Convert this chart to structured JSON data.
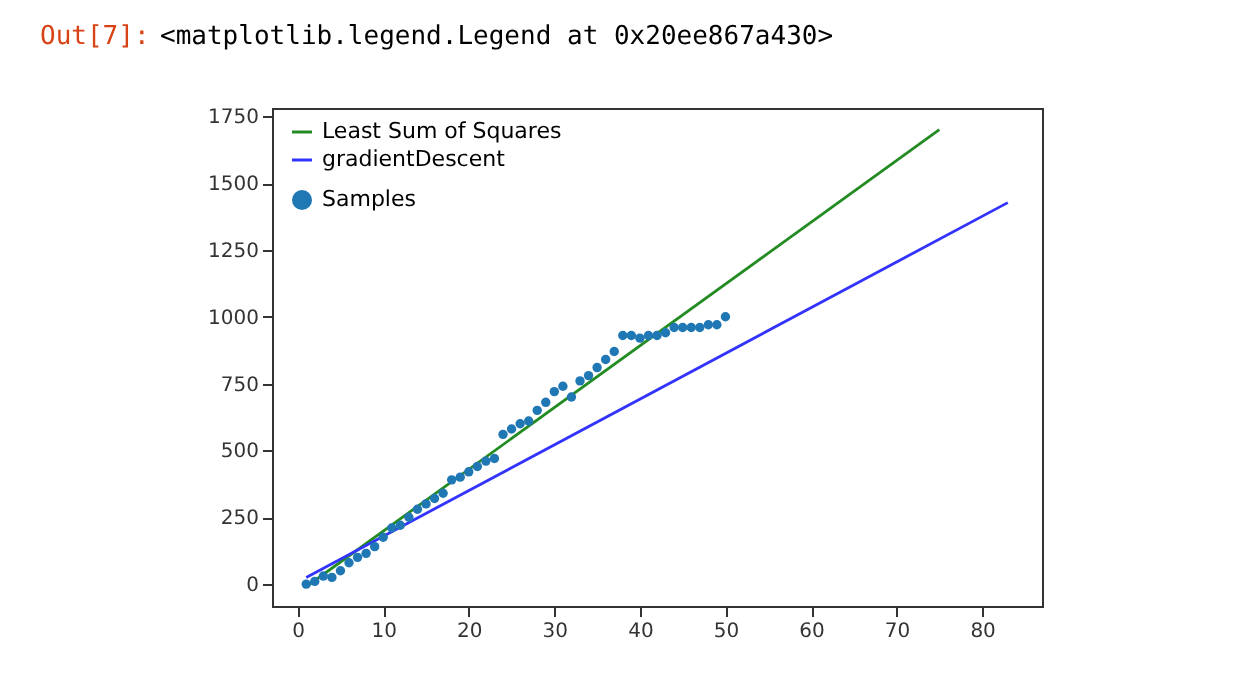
{
  "chart_data": {
    "type": "scatter",
    "annotations": [
      "Out[7]:",
      "<matplotlib.legend.Legend at 0x20ee867a430>"
    ],
    "xlim": [
      -3,
      87
    ],
    "ylim": [
      -82,
      1781
    ],
    "xticks": [
      0,
      10,
      20,
      30,
      40,
      50,
      60,
      70,
      80
    ],
    "yticks": [
      0,
      250,
      500,
      750,
      1000,
      1250,
      1500,
      1750
    ],
    "grid": false,
    "legend": "top left",
    "series": [
      {
        "name": "Least Sum of Squares",
        "type": "line",
        "color": "#228b22",
        "x": [
          1,
          75
        ],
        "values": [
          -10,
          1700
        ]
      },
      {
        "name": "gradientDescent",
        "type": "line",
        "color": "#3333ff",
        "x": [
          1,
          83
        ],
        "values": [
          25,
          1427
        ]
      },
      {
        "name": "Samples",
        "color": "#1f77b4",
        "marker": "circle",
        "x": [
          1,
          2,
          3,
          4,
          5,
          6,
          7,
          8,
          9,
          10,
          11,
          12,
          13,
          14,
          15,
          16,
          17,
          18,
          19,
          20,
          21,
          22,
          23,
          24,
          25,
          26,
          27,
          28,
          29,
          30,
          31,
          32,
          33,
          34,
          35,
          36,
          37,
          38,
          39,
          40,
          41,
          42,
          43,
          44,
          45,
          46,
          47,
          48,
          49,
          50
        ],
        "values": [
          0,
          10,
          30,
          25,
          50,
          80,
          100,
          115,
          140,
          175,
          210,
          220,
          250,
          280,
          300,
          320,
          340,
          390,
          400,
          420,
          440,
          460,
          470,
          560,
          580,
          600,
          610,
          650,
          680,
          720,
          740,
          700,
          760,
          780,
          810,
          840,
          870,
          930,
          930,
          920,
          930,
          930,
          940,
          960,
          960,
          960,
          960,
          970,
          970,
          1000
        ]
      }
    ]
  }
}
